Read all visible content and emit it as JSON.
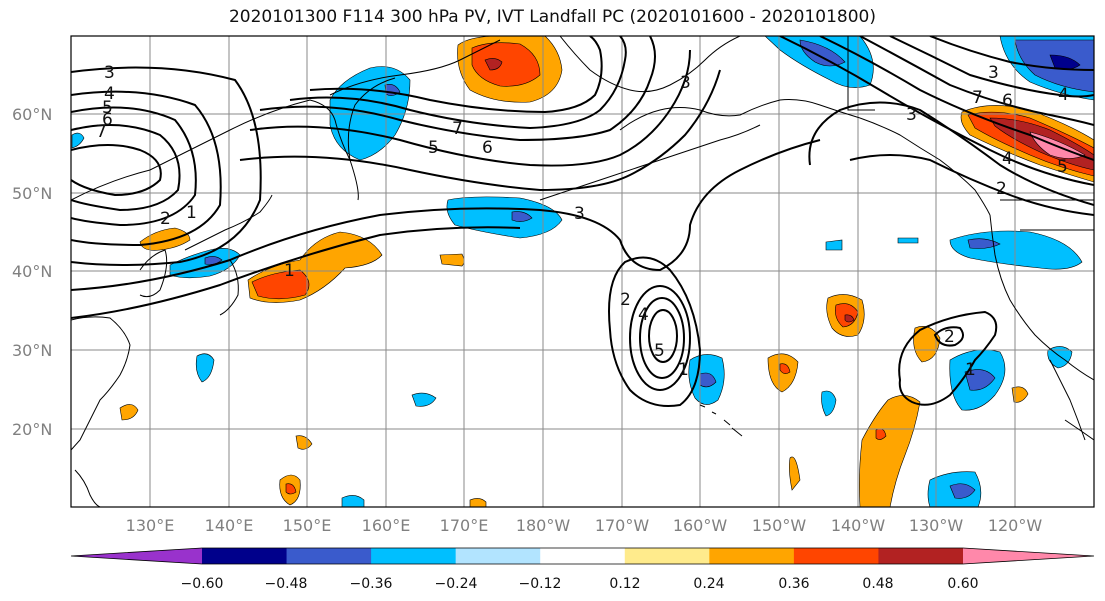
{
  "title": "2020101300 F114 300 hPa PV, IVT Landfall PC (2020101600 - 2020101800)",
  "lat_labels": [
    "60°N",
    "50°N",
    "40°N",
    "30°N",
    "20°N"
  ],
  "lon_labels": [
    "130°E",
    "140°E",
    "150°E",
    "160°E",
    "170°E",
    "180°W",
    "170°W",
    "160°W",
    "150°W",
    "140°W",
    "130°W",
    "120°W"
  ],
  "colorbar": {
    "colors": [
      "#9932cc",
      "#00008b",
      "#3a5bcc",
      "#00bfff",
      "#b2e4ff",
      "#ffffff",
      "#ffeb8c",
      "#ffa500",
      "#ff4500",
      "#b22222",
      "#ff88aa"
    ],
    "ticks": [
      "−0.60",
      "−0.48",
      "−0.36",
      "−0.24",
      "−0.12",
      "0.12",
      "0.24",
      "0.36",
      "0.48",
      "0.60"
    ]
  },
  "contour_labels": [
    "3",
    "4",
    "5",
    "6",
    "7",
    "5",
    "6",
    "7",
    "3",
    "2",
    "1",
    "1",
    "1",
    "2",
    "4",
    "5",
    "3",
    "2",
    "1",
    "6",
    "5",
    "4",
    "2",
    "3",
    "7",
    "3",
    "4"
  ]
}
